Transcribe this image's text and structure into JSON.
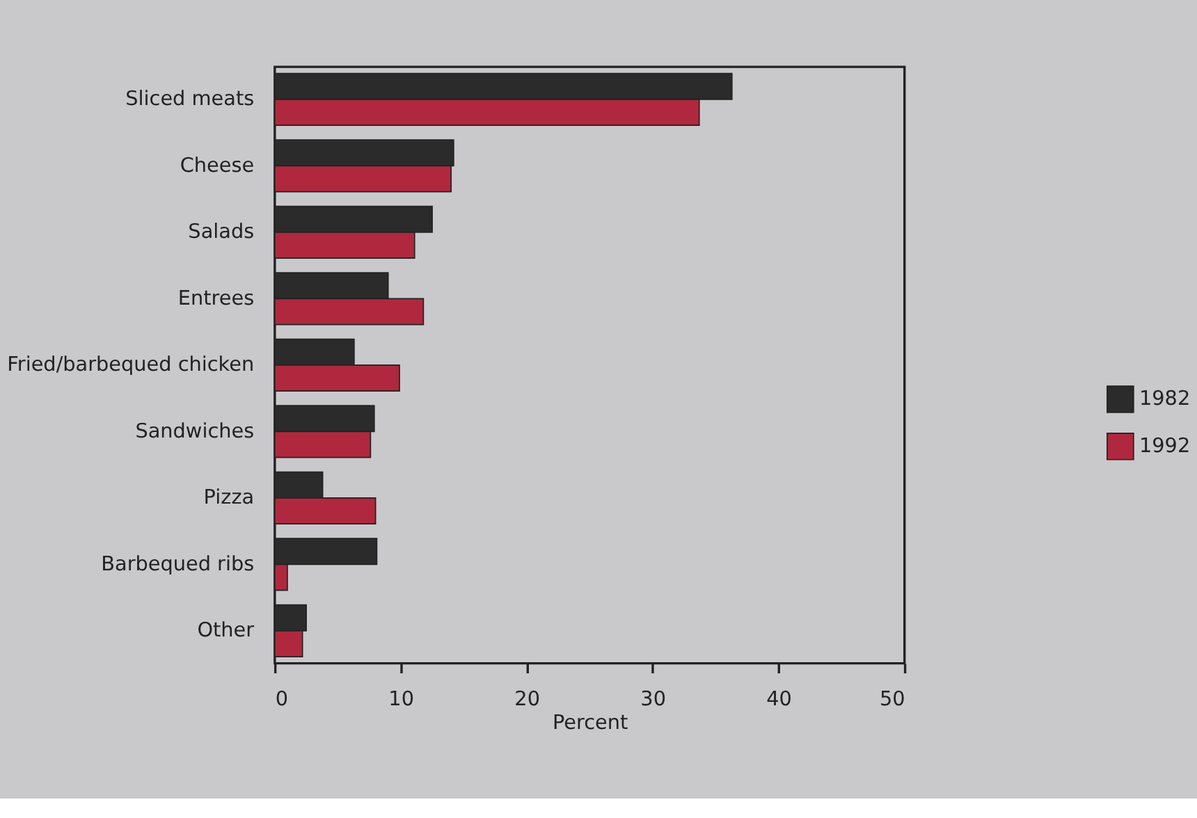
{
  "chart_data": {
    "type": "bar",
    "orientation": "horizontal",
    "xlabel": "Percent",
    "categories": [
      "Sliced meats",
      "Cheese",
      "Salads",
      "Entrees",
      "Fried/barbequed chicken",
      "Sandwiches",
      "Pizza",
      "Barbequed ribs",
      "Other"
    ],
    "series": [
      {
        "name": "1982",
        "color": "#2b2b2b",
        "values": [
          36.3,
          14.2,
          12.5,
          9.0,
          6.3,
          7.9,
          3.8,
          8.1,
          2.5
        ]
      },
      {
        "name": "1992",
        "color": "#b0283e",
        "values": [
          33.7,
          14.0,
          11.1,
          11.8,
          9.9,
          7.6,
          8.0,
          1.0,
          2.2
        ]
      }
    ],
    "xlim": [
      0,
      50
    ],
    "xticks": [
      0,
      10,
      20,
      30,
      40,
      50
    ],
    "grid": false,
    "legend": "right"
  }
}
